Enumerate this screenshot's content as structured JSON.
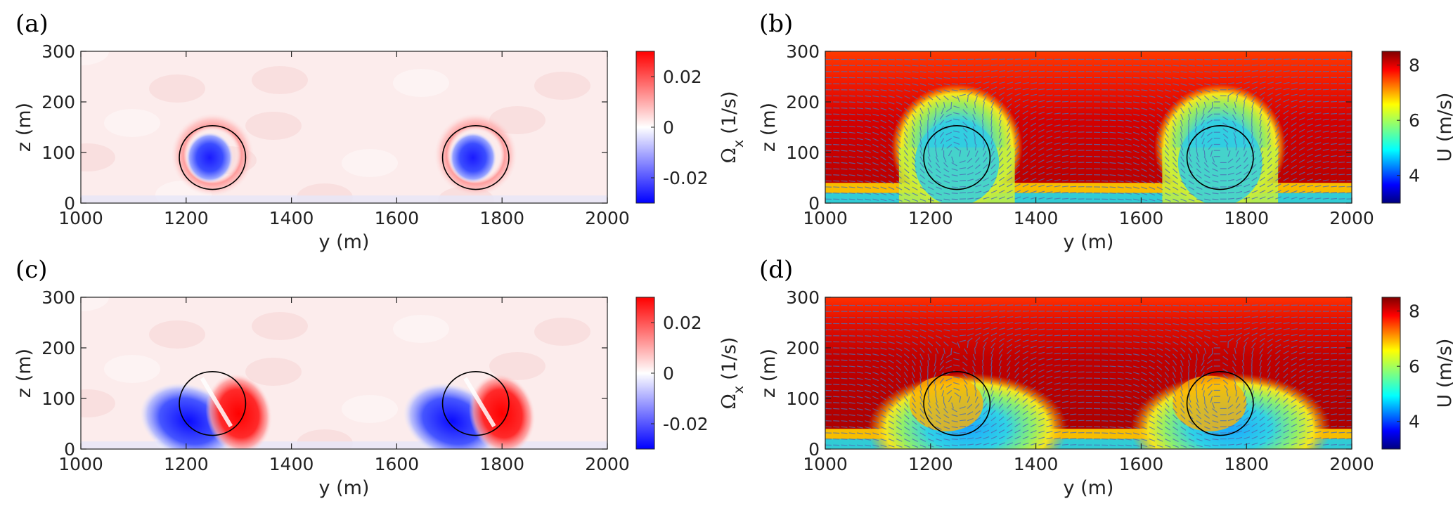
{
  "figure": {
    "panel_labels": [
      "(a)",
      "(b)",
      "(c)",
      "(d)"
    ]
  },
  "chart_data": [
    {
      "id": "a",
      "type": "heatmap",
      "field": "streamwise vorticity",
      "xlabel": "y (m)",
      "ylabel": "z (m)",
      "xlim": [
        1000,
        2000
      ],
      "ylim": [
        0,
        300
      ],
      "xticks": [
        1000,
        1200,
        1400,
        1600,
        1800,
        2000
      ],
      "yticks": [
        0,
        100,
        200,
        300
      ],
      "colorbar": {
        "label_symbol": "Ω",
        "label_sub": "x",
        "label_unit": "(1/s)",
        "range": [
          -0.03,
          0.03
        ],
        "ticks": [
          -0.02,
          0,
          0.02
        ],
        "tick_labels": [
          "-0.02",
          "0",
          "0.02"
        ],
        "colors": [
          "#0000ff",
          "#ffffff",
          "#ff0000"
        ]
      },
      "circles": [
        {
          "center_y": 1250,
          "center_z": 90,
          "radius": 63
        },
        {
          "center_y": 1750,
          "center_z": 90,
          "radius": 63
        }
      ],
      "features": "negative vortex cores at rotor centers (about -0.03), positive ring around rotor disk"
    },
    {
      "id": "b",
      "type": "heatmap",
      "field": "streamwise velocity with in-plane vectors",
      "xlabel": "y (m)",
      "ylabel": "z (m)",
      "xlim": [
        1000,
        2000
      ],
      "ylim": [
        0,
        300
      ],
      "xticks": [
        1000,
        1200,
        1400,
        1600,
        1800,
        2000
      ],
      "yticks": [
        0,
        100,
        200,
        300
      ],
      "colorbar": {
        "label": "U (m/s)",
        "range": [
          3,
          8.5
        ],
        "ticks": [
          4,
          6,
          8
        ],
        "tick_labels": [
          "4",
          "6",
          "8"
        ],
        "colormap": "jet"
      },
      "circles": [
        {
          "center_y": 1250,
          "center_z": 90,
          "radius": 63
        },
        {
          "center_y": 1750,
          "center_z": 90,
          "radius": 63
        }
      ],
      "features": "wake velocity deficit (about 5 m/s) inside rotor disks, freestream about 8 m/s"
    },
    {
      "id": "c",
      "type": "heatmap",
      "field": "streamwise vorticity",
      "xlabel": "y (m)",
      "ylabel": "z (m)",
      "xlim": [
        1000,
        2000
      ],
      "ylim": [
        0,
        300
      ],
      "xticks": [
        1000,
        1200,
        1400,
        1600,
        1800,
        2000
      ],
      "yticks": [
        0,
        100,
        200,
        300
      ],
      "colorbar": {
        "label_symbol": "Ω",
        "label_sub": "x",
        "label_unit": "(1/s)",
        "range": [
          -0.03,
          0.03
        ],
        "ticks": [
          -0.02,
          0,
          0.02
        ],
        "tick_labels": [
          "-0.02",
          "0",
          "0.02"
        ],
        "colors": [
          "#0000ff",
          "#ffffff",
          "#ff0000"
        ]
      },
      "circles": [
        {
          "center_y": 1250,
          "center_z": 90,
          "radius": 63
        },
        {
          "center_y": 1750,
          "center_z": 90,
          "radius": 63
        }
      ],
      "features": "counter-rotating vortex pair: negative lobe on left-lower side, positive lobe on right side of each rotor"
    },
    {
      "id": "d",
      "type": "heatmap",
      "field": "streamwise velocity with in-plane vectors",
      "xlabel": "y (m)",
      "ylabel": "z (m)",
      "xlim": [
        1000,
        2000
      ],
      "ylim": [
        0,
        300
      ],
      "xticks": [
        1000,
        1200,
        1400,
        1600,
        1800,
        2000
      ],
      "yticks": [
        0,
        100,
        200,
        300
      ],
      "colorbar": {
        "label": "U (m/s)",
        "range": [
          3,
          8.5
        ],
        "ticks": [
          4,
          6,
          8
        ],
        "tick_labels": [
          "4",
          "6",
          "8"
        ],
        "colormap": "jet"
      },
      "circles": [
        {
          "center_y": 1250,
          "center_z": 90,
          "radius": 63
        },
        {
          "center_y": 1750,
          "center_z": 90,
          "radius": 63
        }
      ],
      "features": "wake deficit displaced downward to near-ground region, curled kidney-shaped wakes"
    }
  ]
}
